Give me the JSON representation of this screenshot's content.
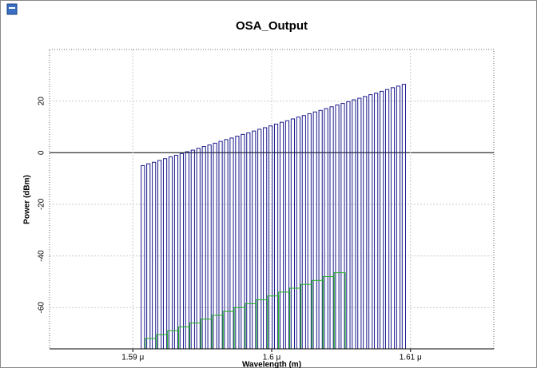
{
  "chart_data": {
    "type": "bar",
    "title": "OSA_Output",
    "x_label": "Wavelength (m)",
    "y_label": "Power (dBm)",
    "xlim": [
      1.584,
      1.616
    ],
    "ylim": [
      -76,
      40
    ],
    "xticks": [
      {
        "value": 1.59,
        "label": "1.59 μ"
      },
      {
        "value": 1.6,
        "label": "1.6 μ"
      },
      {
        "value": 1.61,
        "label": "1.61 μ"
      }
    ],
    "yticks": [
      20,
      0,
      -20,
      -40,
      -60
    ],
    "grid": true,
    "series": [
      {
        "color": "#1a1a8c",
        "x": [
          1.5906,
          1.591,
          1.5914,
          1.5918,
          1.5922,
          1.5926,
          1.593,
          1.5934,
          1.5938,
          1.5942,
          1.5946,
          1.595,
          1.5954,
          1.5958,
          1.5962,
          1.5966,
          1.597,
          1.5974,
          1.5978,
          1.5982,
          1.5986,
          1.599,
          1.5994,
          1.5998,
          1.6002,
          1.6006,
          1.601,
          1.6014,
          1.6018,
          1.6022,
          1.6026,
          1.603,
          1.6034,
          1.6038,
          1.6042,
          1.6046,
          1.605,
          1.6054,
          1.6058,
          1.6062,
          1.6066,
          1.607,
          1.6074,
          1.6078,
          1.6082,
          1.6086,
          1.609,
          1.6094
        ],
        "values": [
          -5,
          -4.3,
          -3.7,
          -3,
          -2.3,
          -1.6,
          -1,
          -0.3,
          0.4,
          1,
          1.7,
          2.4,
          3,
          3.7,
          4.4,
          5.1,
          5.7,
          6.4,
          7.1,
          7.7,
          8.4,
          9.1,
          9.7,
          10.4,
          11.1,
          11.8,
          12.4,
          13.1,
          13.8,
          14.4,
          15.1,
          15.8,
          16.4,
          17.1,
          17.8,
          18.5,
          19.1,
          19.8,
          20.5,
          21.1,
          21.8,
          22.5,
          23.1,
          23.8,
          24.5,
          25.2,
          25.8,
          26.5
        ]
      },
      {
        "color": "#22b022",
        "x": [
          1.5909,
          1.5917,
          1.5925,
          1.5933,
          1.5941,
          1.5949,
          1.5957,
          1.5965,
          1.5973,
          1.5981,
          1.5989,
          1.5997,
          1.6005,
          1.6013,
          1.6021,
          1.6029,
          1.6037,
          1.6045
        ],
        "values": [
          -72,
          -70.5,
          -69,
          -67.5,
          -66,
          -64.5,
          -63,
          -61.5,
          -60,
          -58.5,
          -57,
          -55.5,
          -54,
          -52.5,
          -51,
          -49.5,
          -48,
          -46.5
        ]
      }
    ]
  }
}
